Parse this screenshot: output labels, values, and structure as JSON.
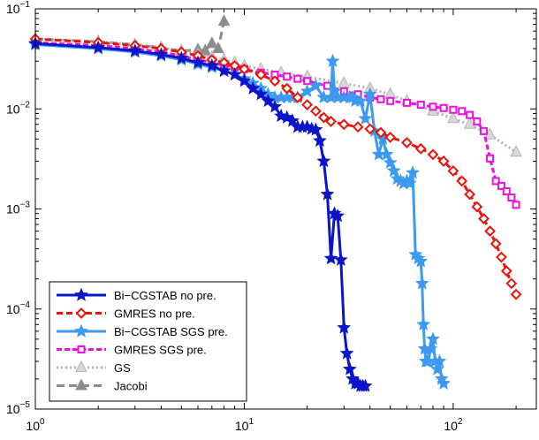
{
  "chart_data": {
    "type": "line",
    "title": "",
    "xlabel": "",
    "ylabel": "",
    "x_scale": "log",
    "y_scale": "log",
    "xlim": [
      1,
      250
    ],
    "ylim": [
      1e-05,
      0.1
    ],
    "grid": false,
    "legend_position": "bottom-left",
    "x_tick_labels": [
      {
        "value": 1,
        "base": "10",
        "exp": "0"
      },
      {
        "value": 10,
        "base": "10",
        "exp": "1"
      },
      {
        "value": 100,
        "base": "10",
        "exp": "2"
      }
    ],
    "y_tick_labels": [
      {
        "value": 1e-05,
        "base": "10",
        "exp": "−5"
      },
      {
        "value": 0.0001,
        "base": "10",
        "exp": "−4"
      },
      {
        "value": 0.001,
        "base": "10",
        "exp": "−3"
      },
      {
        "value": 0.01,
        "base": "10",
        "exp": "−2"
      },
      {
        "value": 0.1,
        "base": "10",
        "exp": "−1"
      }
    ],
    "series": [
      {
        "name": "Bi−CGSTAB no pre.",
        "color": "#0a14c8",
        "dash": "",
        "marker": "star",
        "marker_fill": "#0a14c8",
        "x": [
          1,
          2,
          3,
          4,
          5,
          6,
          7,
          8,
          9,
          10,
          11,
          12,
          13,
          14,
          15,
          16,
          17,
          18,
          19,
          20,
          21,
          22,
          23,
          24,
          25,
          26,
          27,
          28,
          29,
          30,
          31,
          32,
          33,
          34,
          35,
          36,
          37,
          38
        ],
        "y": [
          0.045,
          0.041,
          0.038,
          0.035,
          0.032,
          0.029,
          0.027,
          0.024,
          0.022,
          0.019,
          0.016,
          0.014,
          0.012,
          0.0105,
          0.0085,
          0.0082,
          0.0076,
          0.0066,
          0.0066,
          0.0066,
          0.0063,
          0.0062,
          0.0048,
          0.003,
          0.0014,
          0.00032,
          0.0009,
          0.00085,
          0.00031,
          6.5e-05,
          3.6e-05,
          2.5e-05,
          2e-05,
          1.8e-05,
          1.8e-05,
          1.7e-05,
          1.7e-05,
          1.7e-05
        ]
      },
      {
        "name": "GMRES no pre.",
        "color": "#e8140a",
        "dash": "7,4",
        "marker": "diamond",
        "marker_fill": "#ffffff",
        "x": [
          1,
          2,
          3,
          4,
          5,
          6,
          7,
          8,
          9,
          10,
          12,
          14,
          16,
          18,
          20,
          22,
          24,
          26,
          30,
          35,
          40,
          45,
          50,
          60,
          70,
          80,
          90,
          100,
          110,
          120,
          130,
          140,
          150,
          160,
          170,
          180,
          190,
          200
        ],
        "y": [
          0.05,
          0.046,
          0.043,
          0.04,
          0.037,
          0.034,
          0.031,
          0.029,
          0.027,
          0.025,
          0.022,
          0.019,
          0.016,
          0.013,
          0.011,
          0.0095,
          0.0082,
          0.0075,
          0.007,
          0.0066,
          0.0063,
          0.0058,
          0.0052,
          0.0046,
          0.004,
          0.0035,
          0.003,
          0.0024,
          0.0019,
          0.0014,
          0.00105,
          0.0008,
          0.0006,
          0.00045,
          0.00033,
          0.00024,
          0.00018,
          0.00014
        ]
      },
      {
        "name": "Bi−CGSTAB SGS pre.",
        "color": "#3c9af0",
        "dash": "",
        "marker": "star",
        "marker_fill": "#3c9af0",
        "x": [
          1,
          2,
          3,
          4,
          5,
          6,
          7,
          8,
          9,
          10,
          11,
          12,
          13,
          14,
          15,
          16,
          17,
          18,
          20,
          22,
          24,
          26,
          26.5,
          27,
          28,
          30,
          32,
          33,
          34,
          36,
          38,
          40,
          42,
          44,
          46,
          48,
          50,
          52,
          54,
          56,
          58,
          60,
          62,
          64,
          66,
          68,
          70,
          71,
          72,
          73,
          74,
          75,
          76,
          78,
          80,
          82,
          84,
          86,
          88,
          90
        ],
        "y": [
          0.044,
          0.04,
          0.037,
          0.034,
          0.031,
          0.028,
          0.026,
          0.024,
          0.022,
          0.02,
          0.018,
          0.016,
          0.014,
          0.013,
          0.013,
          0.013,
          0.013,
          0.013,
          0.015,
          0.017,
          0.013,
          0.013,
          0.03,
          0.015,
          0.013,
          0.013,
          0.013,
          0.013,
          0.012,
          0.012,
          0.008,
          0.014,
          0.006,
          0.0035,
          0.005,
          0.0035,
          0.0029,
          0.0024,
          0.002,
          0.0019,
          0.0018,
          0.0019,
          0.0018,
          0.0023,
          0.00035,
          0.00032,
          0.0003,
          0.00018,
          7e-05,
          4e-05,
          3e-05,
          3e-05,
          3e-05,
          4e-05,
          5e-05,
          3e-05,
          2.5e-05,
          3e-05,
          2e-05,
          1.8e-05
        ]
      },
      {
        "name": "GMRES SGS pre.",
        "color": "#ee10dc",
        "dash": "6,3",
        "marker": "square",
        "marker_fill": "#ffffff",
        "x": [
          1,
          2,
          3,
          4,
          5,
          6,
          7,
          8,
          9,
          10,
          12,
          14,
          16,
          18,
          20,
          25,
          30,
          35,
          40,
          45,
          50,
          60,
          70,
          80,
          90,
          100,
          110,
          120,
          130,
          140,
          150,
          160,
          170,
          180,
          190,
          200
        ],
        "y": [
          0.046,
          0.043,
          0.04,
          0.037,
          0.034,
          0.031,
          0.029,
          0.027,
          0.026,
          0.025,
          0.023,
          0.022,
          0.021,
          0.02,
          0.019,
          0.017,
          0.015,
          0.014,
          0.013,
          0.0125,
          0.012,
          0.0115,
          0.011,
          0.0105,
          0.0102,
          0.0098,
          0.0095,
          0.0087,
          0.0075,
          0.006,
          0.0032,
          0.0019,
          0.0017,
          0.0015,
          0.0013,
          0.0011
        ]
      },
      {
        "name": "GS",
        "color": "#b4b4b4",
        "dash": "2,3",
        "marker": "triangle",
        "marker_fill": "#d8d8d8",
        "x": [
          1,
          2,
          3,
          4,
          5,
          6,
          7,
          8,
          9,
          10,
          12,
          15,
          20,
          30,
          40,
          50,
          60,
          80,
          100,
          120,
          150,
          200
        ],
        "y": [
          0.05,
          0.047,
          0.044,
          0.041,
          0.038,
          0.035,
          0.033,
          0.031,
          0.029,
          0.027,
          0.025,
          0.023,
          0.021,
          0.018,
          0.016,
          0.014,
          0.012,
          0.0095,
          0.008,
          0.007,
          0.0055,
          0.0037
        ]
      },
      {
        "name": "Jacobi",
        "color": "#8c8c8c",
        "dash": "9,5",
        "marker": "triangle",
        "marker_fill": "#8c8c8c",
        "x": [
          1,
          2,
          3,
          4,
          5,
          6,
          6.5,
          7,
          7.5,
          8
        ],
        "y": [
          0.05,
          0.047,
          0.044,
          0.041,
          0.038,
          0.039,
          0.038,
          0.045,
          0.04,
          0.075
        ]
      }
    ]
  }
}
